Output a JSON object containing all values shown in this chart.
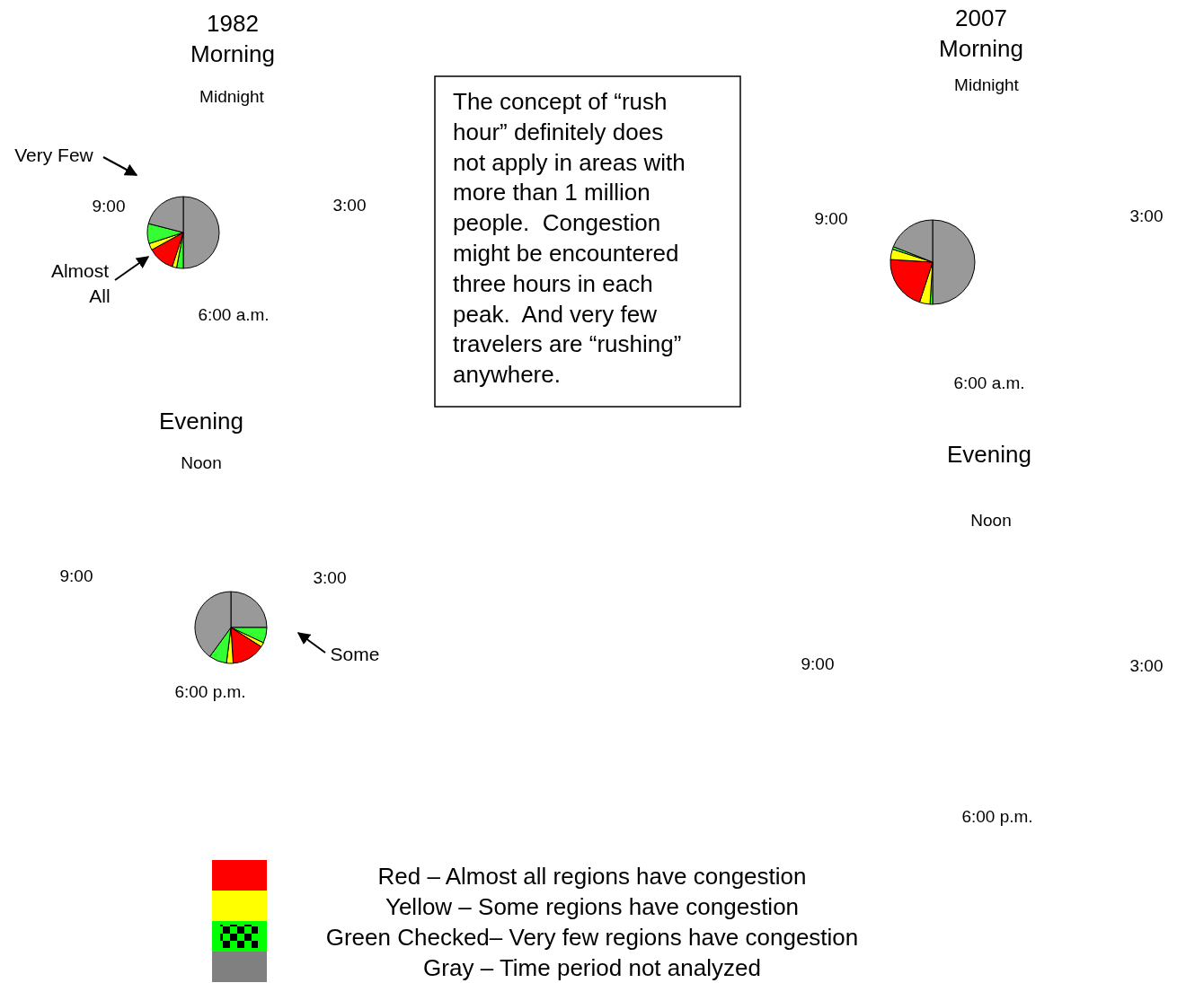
{
  "chart_data": [
    {
      "type": "pie",
      "title": "1982",
      "subtitle": "Morning",
      "categories": [
        null,
        null,
        null,
        null,
        null,
        null,
        null
      ],
      "values": [
        50,
        3,
        2,
        12,
        3,
        9,
        21
      ],
      "colors": [
        "#999999",
        "#33ff33",
        "#ffff00",
        "#ff0000",
        "#ffff00",
        "#33ff33",
        "#999999"
      ],
      "annotations": [
        "Midnight",
        "3:00",
        "6:00 a.m.",
        "9:00",
        "Very Few",
        "Almost All"
      ]
    },
    {
      "type": "pie",
      "title": "Evening",
      "categories": [
        null,
        null,
        null,
        null,
        null,
        null,
        null
      ],
      "values": [
        25,
        7,
        2,
        15,
        3,
        8,
        40
      ],
      "colors": [
        "#999999",
        "#33ff33",
        "#ffff00",
        "#ff0000",
        "#ffff00",
        "#33ff33",
        "#999999"
      ],
      "annotations": [
        "Noon",
        "3:00",
        "6:00 p.m.",
        "9:00",
        "Some"
      ]
    },
    {
      "type": "other",
      "annotations": [
        "The concept of “rush\nhour” definitely does\nnot apply in areas with\nmore than 1 million\npeople.  Congestion\nmight be encountered\nthree hours in each\npeak.  And very few\ntravelers are “rushing”\nanywhere."
      ]
    },
    {
      "type": "pie",
      "title": "2007",
      "subtitle": "Morning",
      "categories": [
        null,
        null,
        null,
        null,
        null,
        null,
        null
      ],
      "values": [
        50,
        1,
        4,
        21,
        4,
        1,
        19
      ],
      "colors": [
        "#999999",
        "#33ff33",
        "#ffff00",
        "#ff0000",
        "#ffff00",
        "#33ff33",
        "#999999"
      ],
      "annotations": [
        "Midnight",
        "3:00",
        "6:00 a.m.",
        "9:00"
      ]
    },
    {
      "type": "other",
      "title": "Evening",
      "annotations": [
        "Noon",
        "3:00",
        "6:00 p.m.",
        "9:00"
      ]
    },
    {
      "type": "other",
      "annotations": [
        "Red – Almost all regions have congestion",
        "Yellow – Some regions have congestion",
        "Green Checked– Very few regions have congestion",
        "Gray – Time period not analyzed"
      ]
    }
  ]
}
